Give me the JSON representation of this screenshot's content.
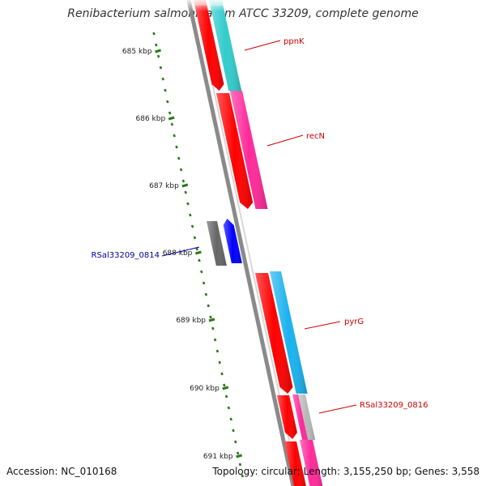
{
  "title": "Renibacterium salmoninarum ATCC 33209, complete genome",
  "accession": "Accession: NC_010168",
  "topology": "Topology: circular; Length: 3,155,250 bp; Genes: 3,558",
  "ruler": {
    "unit": "kbp",
    "ticks": [
      {
        "label": "685 kbp"
      },
      {
        "label": "686 kbp"
      },
      {
        "label": "687 kbp"
      },
      {
        "label": "688 kbp"
      },
      {
        "label": "689 kbp"
      },
      {
        "label": "690 kbp"
      },
      {
        "label": "691 kbp"
      }
    ]
  },
  "colors": {
    "cds": "#ff0000",
    "gene_cyan": "#33cccc",
    "gene_magenta": "#ff2a9a",
    "gene_sky": "#1ab2ee",
    "gene_blue": "#0000ff",
    "gene_grey": "#666666",
    "gene_lightgrey": "#b8b8b8",
    "backbone": "#8a8a8a",
    "ruler": "#2a7a1a",
    "label_red": "#cc0000",
    "label_blue": "#000099"
  },
  "gene_labels": [
    {
      "id": "ppnK",
      "text": "ppnK",
      "color": "label_red"
    },
    {
      "id": "recN",
      "text": "recN",
      "color": "label_red"
    },
    {
      "id": "pyrG",
      "text": "pyrG",
      "color": "label_red"
    },
    {
      "id": "rsal0816",
      "text": "RSal33209_0816",
      "color": "label_red"
    },
    {
      "id": "rsal0814",
      "text": "RSal33209_0814",
      "color": "label_blue"
    }
  ]
}
